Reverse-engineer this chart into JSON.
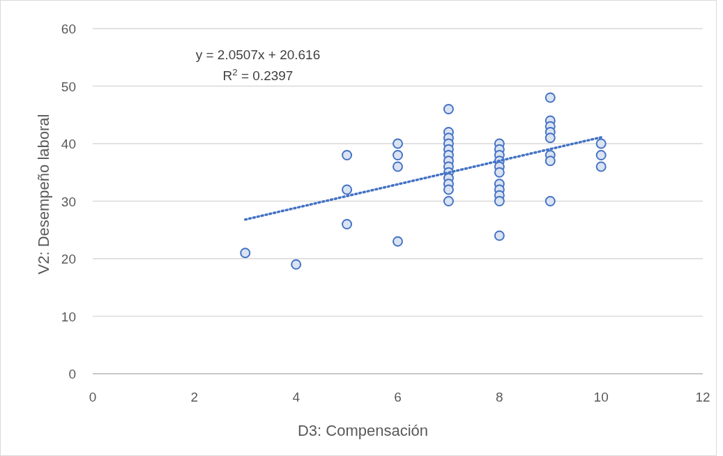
{
  "chart_data": {
    "type": "scatter",
    "xlabel": "D3: Compensación",
    "ylabel": "V2: Desempeño laboral",
    "annotations": [
      "y = 2.0507x + 20.616",
      "R$^{2}$ = 0.2397"
    ],
    "xlim": [
      0,
      12
    ],
    "xticks": [
      0,
      2,
      4,
      6,
      8,
      10,
      12
    ],
    "ylim": [
      0,
      60
    ],
    "yticks": [
      0,
      10,
      20,
      30,
      40,
      50,
      60
    ],
    "grid": "y",
    "marker": "circle",
    "series": [
      {
        "color": "#4472c4",
        "x": [
          3,
          4,
          5,
          5,
          5,
          6,
          6,
          6,
          6,
          7,
          7,
          7,
          7,
          7,
          7,
          7,
          7,
          7,
          7,
          7,
          7,
          7,
          8,
          8,
          8,
          8,
          8,
          8,
          8,
          8,
          8,
          8,
          8,
          9,
          9,
          9,
          9,
          9,
          9,
          9,
          9,
          10,
          10,
          10
        ],
        "values": [
          21,
          19,
          38,
          32,
          26,
          40,
          38,
          36,
          23,
          46,
          42,
          41,
          40,
          39,
          38,
          37,
          36,
          35,
          34,
          33,
          32,
          30,
          40,
          39,
          38,
          37,
          36,
          35,
          33,
          32,
          31,
          30,
          24,
          48,
          44,
          43,
          42,
          41,
          38,
          37,
          30,
          40,
          38,
          36
        ]
      },
      {
        "type": "line",
        "color": "#4472c4",
        "line_style": "dotted",
        "marker": "none",
        "x": [
          3,
          10
        ],
        "values": [
          26.8,
          41.1
        ]
      }
    ]
  }
}
